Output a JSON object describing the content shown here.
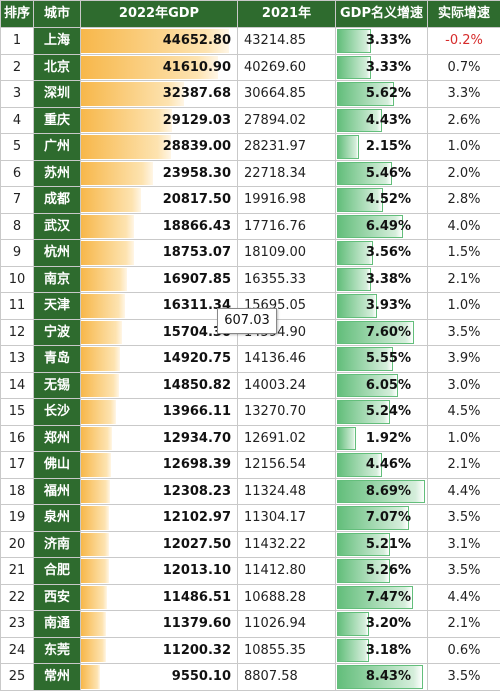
{
  "chart_data": {
    "type": "table",
    "headers": [
      "排序",
      "城市",
      "2022年GDP",
      "2021年",
      "GDP名义增速",
      "实际增速"
    ],
    "rows": [
      {
        "rank": "1",
        "city": "上海",
        "gdp2022": "44652.80",
        "gdp2021": "43214.85",
        "growth": "3.33%",
        "real": "-0.2%"
      },
      {
        "rank": "2",
        "city": "北京",
        "gdp2022": "41610.90",
        "gdp2021": "40269.60",
        "growth": "3.33%",
        "real": "0.7%"
      },
      {
        "rank": "3",
        "city": "深圳",
        "gdp2022": "32387.68",
        "gdp2021": "30664.85",
        "growth": "5.62%",
        "real": "3.3%"
      },
      {
        "rank": "4",
        "city": "重庆",
        "gdp2022": "29129.03",
        "gdp2021": "27894.02",
        "growth": "4.43%",
        "real": "2.6%"
      },
      {
        "rank": "5",
        "city": "广州",
        "gdp2022": "28839.00",
        "gdp2021": "28231.97",
        "growth": "2.15%",
        "real": "1.0%"
      },
      {
        "rank": "6",
        "city": "苏州",
        "gdp2022": "23958.30",
        "gdp2021": "22718.34",
        "growth": "5.46%",
        "real": "2.0%"
      },
      {
        "rank": "7",
        "city": "成都",
        "gdp2022": "20817.50",
        "gdp2021": "19916.98",
        "growth": "4.52%",
        "real": "2.8%"
      },
      {
        "rank": "8",
        "city": "武汉",
        "gdp2022": "18866.43",
        "gdp2021": "17716.76",
        "growth": "6.49%",
        "real": "4.0%"
      },
      {
        "rank": "9",
        "city": "杭州",
        "gdp2022": "18753.07",
        "gdp2021": "18109.00",
        "growth": "3.56%",
        "real": "1.5%"
      },
      {
        "rank": "10",
        "city": "南京",
        "gdp2022": "16907.85",
        "gdp2021": "16355.33",
        "growth": "3.38%",
        "real": "2.1%"
      },
      {
        "rank": "11",
        "city": "天津",
        "gdp2022": "16311.34",
        "gdp2021": "15695.05",
        "growth": "3.93%",
        "real": "1.0%"
      },
      {
        "rank": "12",
        "city": "宁波",
        "gdp2022": "15704.30",
        "gdp2021": "14594.90",
        "growth": "7.60%",
        "real": "3.5%"
      },
      {
        "rank": "13",
        "city": "青岛",
        "gdp2022": "14920.75",
        "gdp2021": "14136.46",
        "growth": "5.55%",
        "real": "3.9%"
      },
      {
        "rank": "14",
        "city": "无锡",
        "gdp2022": "14850.82",
        "gdp2021": "14003.24",
        "growth": "6.05%",
        "real": "3.0%"
      },
      {
        "rank": "15",
        "city": "长沙",
        "gdp2022": "13966.11",
        "gdp2021": "13270.70",
        "growth": "5.24%",
        "real": "4.5%"
      },
      {
        "rank": "16",
        "city": "郑州",
        "gdp2022": "12934.70",
        "gdp2021": "12691.02",
        "growth": "1.92%",
        "real": "1.0%"
      },
      {
        "rank": "17",
        "city": "佛山",
        "gdp2022": "12698.39",
        "gdp2021": "12156.54",
        "growth": "4.46%",
        "real": "2.1%"
      },
      {
        "rank": "18",
        "city": "福州",
        "gdp2022": "12308.23",
        "gdp2021": "11324.48",
        "growth": "8.69%",
        "real": "4.4%"
      },
      {
        "rank": "19",
        "city": "泉州",
        "gdp2022": "12102.97",
        "gdp2021": "11304.17",
        "growth": "7.07%",
        "real": "3.5%"
      },
      {
        "rank": "20",
        "city": "济南",
        "gdp2022": "12027.50",
        "gdp2021": "11432.22",
        "growth": "5.21%",
        "real": "3.1%"
      },
      {
        "rank": "21",
        "city": "合肥",
        "gdp2022": "12013.10",
        "gdp2021": "11412.80",
        "growth": "5.26%",
        "real": "3.5%"
      },
      {
        "rank": "22",
        "city": "西安",
        "gdp2022": "11486.51",
        "gdp2021": "10688.28",
        "growth": "7.47%",
        "real": "4.4%"
      },
      {
        "rank": "23",
        "city": "南通",
        "gdp2022": "11379.60",
        "gdp2021": "11026.94",
        "growth": "3.20%",
        "real": "2.1%"
      },
      {
        "rank": "24",
        "city": "东莞",
        "gdp2022": "11200.32",
        "gdp2021": "10855.35",
        "growth": "3.18%",
        "real": "0.6%"
      },
      {
        "rank": "25",
        "city": "常州",
        "gdp2022": "9550.10",
        "gdp2021": "8807.58",
        "growth": "8.43%",
        "real": "3.5%"
      }
    ],
    "colors": {
      "header_bg": "#2e6b2e",
      "city_bg": "#2e6b2e",
      "gdp_bar": "#f7b74a",
      "growth_bar": "#63be7b",
      "negative_text": "#d62b2b"
    }
  },
  "tooltip": {
    "text": "607.03"
  }
}
